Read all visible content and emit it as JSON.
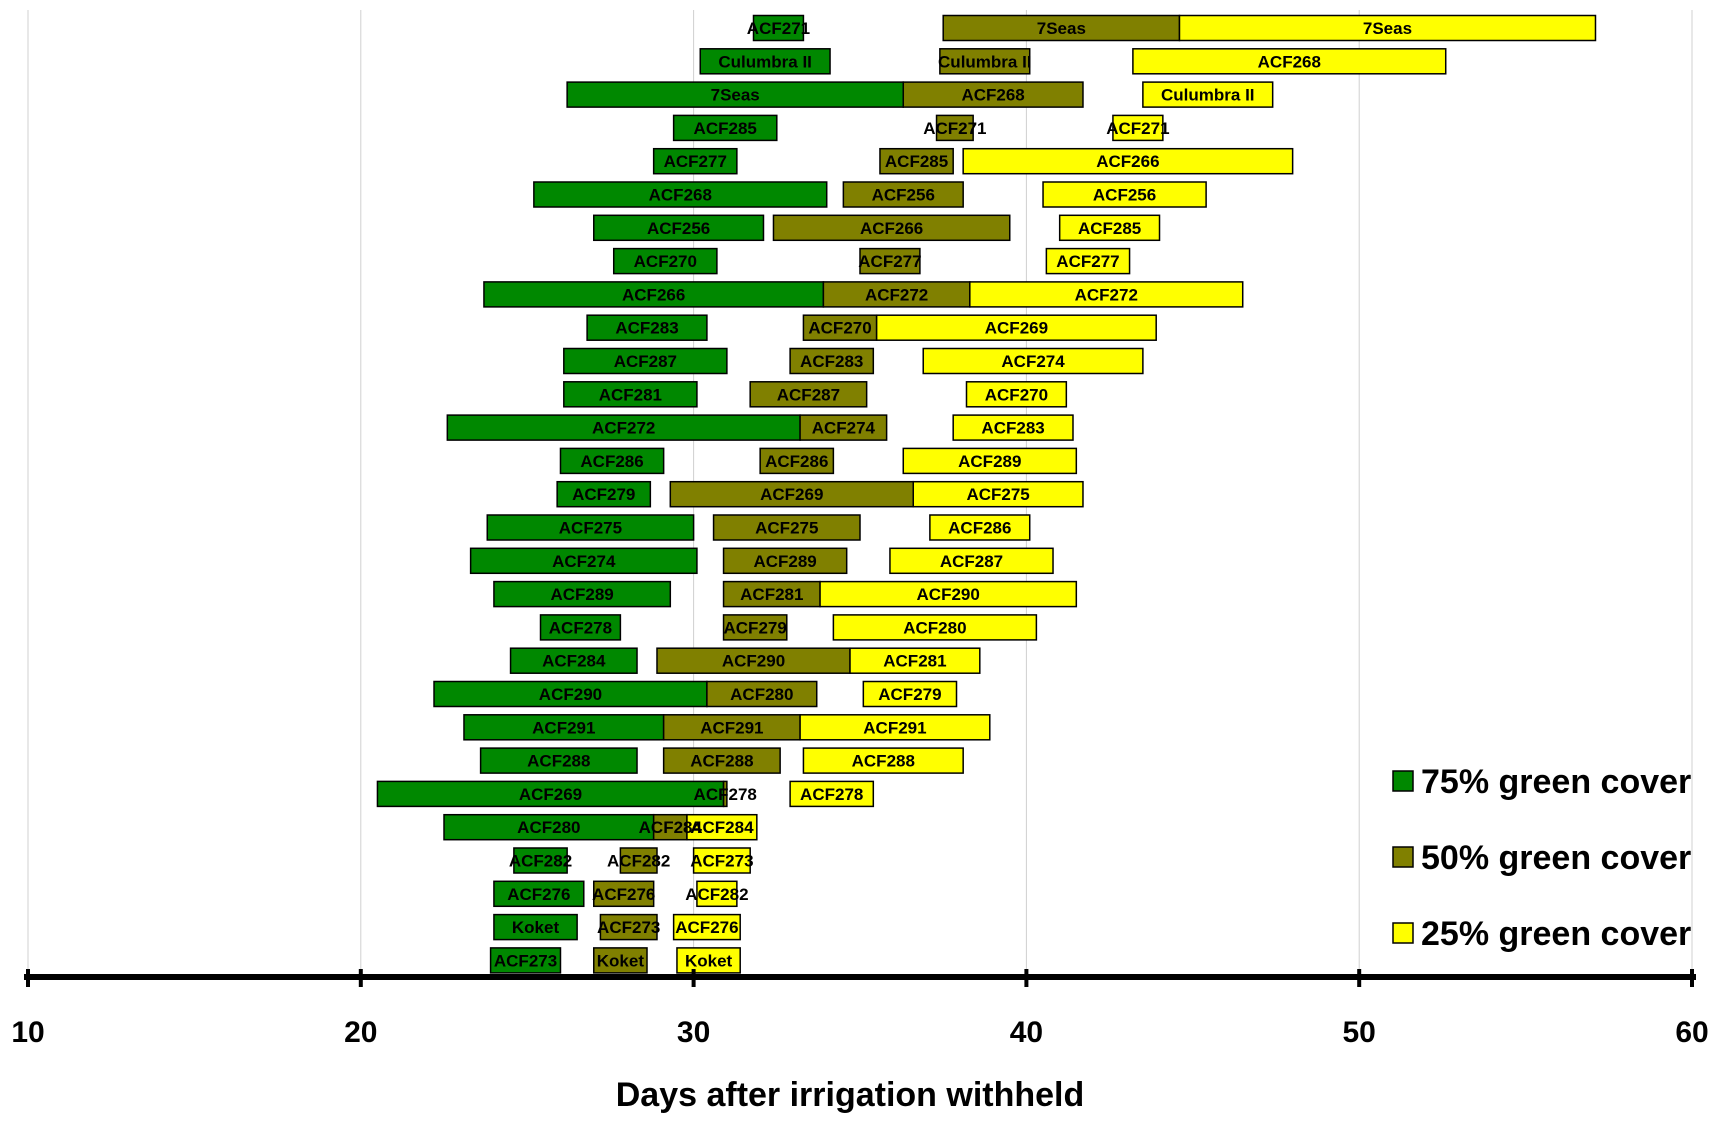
{
  "chart_data": {
    "type": "bar",
    "orientation": "horizontal-floating",
    "title": "",
    "xlabel": "Days after irrigation withheld",
    "ylabel": "",
    "xlim": [
      10,
      60
    ],
    "xticks": [
      10,
      20,
      30,
      40,
      50,
      60
    ],
    "grid": true,
    "legend_position": "bottom-right",
    "colors": {
      "75": "#008800",
      "50": "#808000",
      "25": "#ffff00"
    },
    "series": [
      {
        "name": "75% green cover",
        "key": "75"
      },
      {
        "name": "50% green cover",
        "key": "50"
      },
      {
        "name": "25% green cover",
        "key": "25"
      }
    ],
    "rows": [
      {
        "bars": [
          {
            "s": "75",
            "label": "ACF271",
            "start": 31.8,
            "end": 33.3
          },
          {
            "s": "50",
            "label": "7Seas",
            "start": 37.5,
            "end": 44.6
          },
          {
            "s": "25",
            "label": "7Seas",
            "start": 44.6,
            "end": 57.1
          }
        ]
      },
      {
        "bars": [
          {
            "s": "75",
            "label": "Culumbra II",
            "start": 30.2,
            "end": 34.1
          },
          {
            "s": "50",
            "label": "Culumbra II",
            "start": 37.4,
            "end": 40.1
          },
          {
            "s": "25",
            "label": "ACF268",
            "start": 43.2,
            "end": 52.6
          }
        ]
      },
      {
        "bars": [
          {
            "s": "75",
            "label": "7Seas",
            "start": 26.2,
            "end": 36.3
          },
          {
            "s": "50",
            "label": "ACF268",
            "start": 36.3,
            "end": 41.7
          },
          {
            "s": "25",
            "label": "Culumbra II",
            "start": 43.5,
            "end": 47.4
          }
        ]
      },
      {
        "bars": [
          {
            "s": "75",
            "label": "ACF285",
            "start": 29.4,
            "end": 32.5
          },
          {
            "s": "50",
            "label": "ACF271",
            "start": 37.3,
            "end": 38.4
          },
          {
            "s": "25",
            "label": "ACF271",
            "start": 42.6,
            "end": 44.1
          }
        ]
      },
      {
        "bars": [
          {
            "s": "75",
            "label": "ACF277",
            "start": 28.8,
            "end": 31.3
          },
          {
            "s": "50",
            "label": "ACF285",
            "start": 35.6,
            "end": 37.8
          },
          {
            "s": "25",
            "label": "ACF266",
            "start": 38.1,
            "end": 48.0
          }
        ]
      },
      {
        "bars": [
          {
            "s": "75",
            "label": "ACF268",
            "start": 25.2,
            "end": 34.0
          },
          {
            "s": "50",
            "label": "ACF256",
            "start": 34.5,
            "end": 38.1
          },
          {
            "s": "25",
            "label": "ACF256",
            "start": 40.5,
            "end": 45.4
          }
        ]
      },
      {
        "bars": [
          {
            "s": "75",
            "label": "ACF256",
            "start": 27.0,
            "end": 32.1
          },
          {
            "s": "50",
            "label": "ACF266",
            "start": 32.4,
            "end": 39.5
          },
          {
            "s": "25",
            "label": "ACF285",
            "start": 41.0,
            "end": 44.0
          }
        ]
      },
      {
        "bars": [
          {
            "s": "75",
            "label": "ACF270",
            "start": 27.6,
            "end": 30.7
          },
          {
            "s": "50",
            "label": "ACF277",
            "start": 35.0,
            "end": 36.8
          },
          {
            "s": "25",
            "label": "ACF277",
            "start": 40.6,
            "end": 43.1
          }
        ]
      },
      {
        "bars": [
          {
            "s": "75",
            "label": "ACF266",
            "start": 23.7,
            "end": 33.9
          },
          {
            "s": "50",
            "label": "ACF272",
            "start": 33.9,
            "end": 38.3
          },
          {
            "s": "25",
            "label": "ACF272",
            "start": 38.3,
            "end": 46.5
          }
        ]
      },
      {
        "bars": [
          {
            "s": "75",
            "label": "ACF283",
            "start": 26.8,
            "end": 30.4
          },
          {
            "s": "50",
            "label": "ACF270",
            "start": 33.3,
            "end": 35.5
          },
          {
            "s": "25",
            "label": "ACF269",
            "start": 35.5,
            "end": 43.9
          }
        ]
      },
      {
        "bars": [
          {
            "s": "75",
            "label": "ACF287",
            "start": 26.1,
            "end": 31.0
          },
          {
            "s": "50",
            "label": "ACF283",
            "start": 32.9,
            "end": 35.4
          },
          {
            "s": "25",
            "label": "ACF274",
            "start": 36.9,
            "end": 43.5
          }
        ]
      },
      {
        "bars": [
          {
            "s": "75",
            "label": "ACF281",
            "start": 26.1,
            "end": 30.1
          },
          {
            "s": "50",
            "label": "ACF287",
            "start": 31.7,
            "end": 35.2
          },
          {
            "s": "25",
            "label": "ACF270",
            "start": 38.2,
            "end": 41.2
          }
        ]
      },
      {
        "bars": [
          {
            "s": "75",
            "label": "ACF272",
            "start": 22.6,
            "end": 33.2
          },
          {
            "s": "50",
            "label": "ACF274",
            "start": 33.2,
            "end": 35.8
          },
          {
            "s": "25",
            "label": "ACF283",
            "start": 37.8,
            "end": 41.4
          }
        ]
      },
      {
        "bars": [
          {
            "s": "75",
            "label": "ACF286",
            "start": 26.0,
            "end": 29.1
          },
          {
            "s": "50",
            "label": "ACF286",
            "start": 32.0,
            "end": 34.2
          },
          {
            "s": "25",
            "label": "ACF289",
            "start": 36.3,
            "end": 41.5
          }
        ]
      },
      {
        "bars": [
          {
            "s": "75",
            "label": "ACF279",
            "start": 25.9,
            "end": 28.7
          },
          {
            "s": "50",
            "label": "ACF269",
            "start": 29.3,
            "end": 36.6
          },
          {
            "s": "25",
            "label": "ACF275",
            "start": 36.6,
            "end": 41.7
          }
        ]
      },
      {
        "bars": [
          {
            "s": "75",
            "label": "ACF275",
            "start": 23.8,
            "end": 30.0
          },
          {
            "s": "50",
            "label": "ACF275",
            "start": 30.6,
            "end": 35.0
          },
          {
            "s": "25",
            "label": "ACF286",
            "start": 37.1,
            "end": 40.1
          }
        ]
      },
      {
        "bars": [
          {
            "s": "75",
            "label": "ACF274",
            "start": 23.3,
            "end": 30.1
          },
          {
            "s": "50",
            "label": "ACF289",
            "start": 30.9,
            "end": 34.6
          },
          {
            "s": "25",
            "label": "ACF287",
            "start": 35.9,
            "end": 40.8
          }
        ]
      },
      {
        "bars": [
          {
            "s": "75",
            "label": "ACF289",
            "start": 24.0,
            "end": 29.3
          },
          {
            "s": "50",
            "label": "ACF281",
            "start": 30.9,
            "end": 33.8
          },
          {
            "s": "25",
            "label": "ACF290",
            "start": 33.8,
            "end": 41.5
          }
        ]
      },
      {
        "bars": [
          {
            "s": "75",
            "label": "ACF278",
            "start": 25.4,
            "end": 27.8
          },
          {
            "s": "50",
            "label": "ACF279",
            "start": 30.9,
            "end": 32.8
          },
          {
            "s": "25",
            "label": "ACF280",
            "start": 34.2,
            "end": 40.3
          }
        ]
      },
      {
        "bars": [
          {
            "s": "75",
            "label": "ACF284",
            "start": 24.5,
            "end": 28.3
          },
          {
            "s": "50",
            "label": "ACF290",
            "start": 28.9,
            "end": 34.7
          },
          {
            "s": "25",
            "label": "ACF281",
            "start": 34.7,
            "end": 38.6
          }
        ]
      },
      {
        "bars": [
          {
            "s": "75",
            "label": "ACF290",
            "start": 22.2,
            "end": 30.4
          },
          {
            "s": "50",
            "label": "ACF280",
            "start": 30.4,
            "end": 33.7
          },
          {
            "s": "25",
            "label": "ACF279",
            "start": 35.1,
            "end": 37.9
          }
        ]
      },
      {
        "bars": [
          {
            "s": "75",
            "label": "ACF291",
            "start": 23.1,
            "end": 29.1
          },
          {
            "s": "50",
            "label": "ACF291",
            "start": 29.1,
            "end": 33.2
          },
          {
            "s": "25",
            "label": "ACF291",
            "start": 33.2,
            "end": 38.9
          }
        ]
      },
      {
        "bars": [
          {
            "s": "75",
            "label": "ACF288",
            "start": 23.6,
            "end": 28.3
          },
          {
            "s": "50",
            "label": "ACF288",
            "start": 29.1,
            "end": 32.6
          },
          {
            "s": "25",
            "label": "ACF288",
            "start": 33.3,
            "end": 38.1
          }
        ]
      },
      {
        "bars": [
          {
            "s": "75",
            "label": "ACF269",
            "start": 20.5,
            "end": 30.9
          },
          {
            "s": "50",
            "label": "ACF278",
            "start": 30.9,
            "end": 31.0
          },
          {
            "s": "25",
            "label": "ACF278",
            "start": 32.9,
            "end": 35.4
          }
        ]
      },
      {
        "bars": [
          {
            "s": "75",
            "label": "ACF280",
            "start": 22.5,
            "end": 28.8
          },
          {
            "s": "50",
            "label": "ACF284",
            "start": 28.8,
            "end": 29.8
          },
          {
            "s": "25",
            "label": "ACF284",
            "start": 29.8,
            "end": 31.9
          }
        ]
      },
      {
        "bars": [
          {
            "s": "75",
            "label": "ACF282",
            "start": 24.6,
            "end": 26.2
          },
          {
            "s": "50",
            "label": "ACF282",
            "start": 27.8,
            "end": 28.9
          },
          {
            "s": "25",
            "label": "ACF273",
            "start": 30.0,
            "end": 31.7
          }
        ]
      },
      {
        "bars": [
          {
            "s": "75",
            "label": "ACF276",
            "start": 24.0,
            "end": 26.7
          },
          {
            "s": "50",
            "label": "ACF276",
            "start": 27.0,
            "end": 28.8
          },
          {
            "s": "25",
            "label": "ACF282",
            "start": 30.1,
            "end": 31.3
          }
        ]
      },
      {
        "bars": [
          {
            "s": "75",
            "label": "Koket",
            "start": 24.0,
            "end": 26.5
          },
          {
            "s": "50",
            "label": "ACF273",
            "start": 27.2,
            "end": 28.9
          },
          {
            "s": "25",
            "label": "ACF276",
            "start": 29.4,
            "end": 31.4
          }
        ]
      },
      {
        "bars": [
          {
            "s": "75",
            "label": "ACF273",
            "start": 23.9,
            "end": 26.0
          },
          {
            "s": "50",
            "label": "Koket",
            "start": 27.0,
            "end": 28.6
          },
          {
            "s": "25",
            "label": "Koket",
            "start": 29.5,
            "end": 31.4
          }
        ]
      }
    ]
  }
}
